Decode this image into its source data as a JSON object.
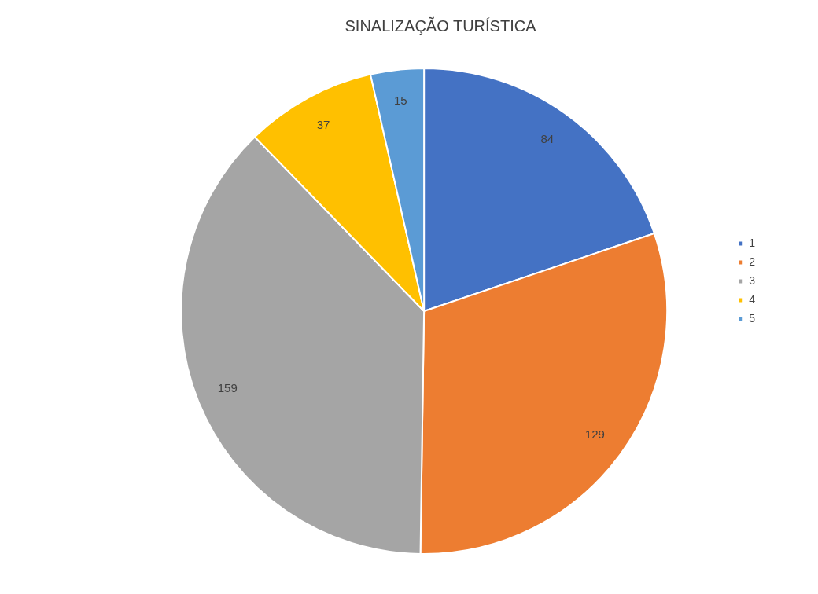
{
  "chart_data": {
    "type": "pie",
    "title": "SINALIZAÇÃO TURÍSTICA",
    "categories": [
      "1",
      "2",
      "3",
      "4",
      "5"
    ],
    "values": [
      84,
      129,
      159,
      37,
      15
    ],
    "colors": [
      "#4472c4",
      "#ed7d31",
      "#a5a5a5",
      "#ffc000",
      "#5b9bd5"
    ],
    "data_labels": true,
    "legend": "right"
  }
}
